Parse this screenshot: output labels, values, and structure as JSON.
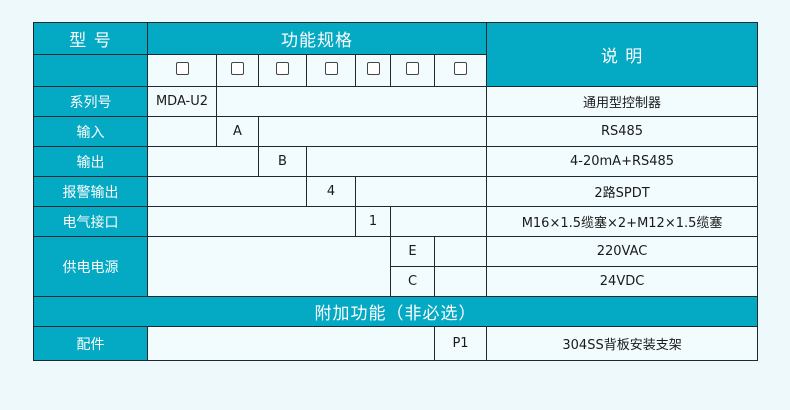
{
  "colors": {
    "header": "#04a9c4",
    "cell": "#f2fcfe",
    "border": "#1e2a30",
    "background": "#eef9fc"
  },
  "header": {
    "model": "型 号",
    "spec": "功能规格",
    "desc": "说 明"
  },
  "placeholder_icon": "empty-checkbox-icon",
  "rows": [
    {
      "label": "系列号",
      "code": "MDA-U2",
      "desc": "通用型控制器"
    },
    {
      "label": "输入",
      "code": "A",
      "desc": "RS485"
    },
    {
      "label": "输出",
      "code": "B",
      "desc": "4-20mA+RS485"
    },
    {
      "label": "报警输出",
      "code": "4",
      "desc": "2路SPDT"
    },
    {
      "label": "电气接口",
      "code": "1",
      "desc": "M16×1.5缆塞×2+M12×1.5缆塞"
    },
    {
      "label": "供电电源",
      "options": [
        {
          "code": "E",
          "desc": "220VAC"
        },
        {
          "code": "C",
          "desc": "24VDC"
        }
      ]
    }
  ],
  "extra": {
    "title": "附加功能（非必选）",
    "label": "配件",
    "code": "P1",
    "desc": "304SS背板安装支架"
  }
}
